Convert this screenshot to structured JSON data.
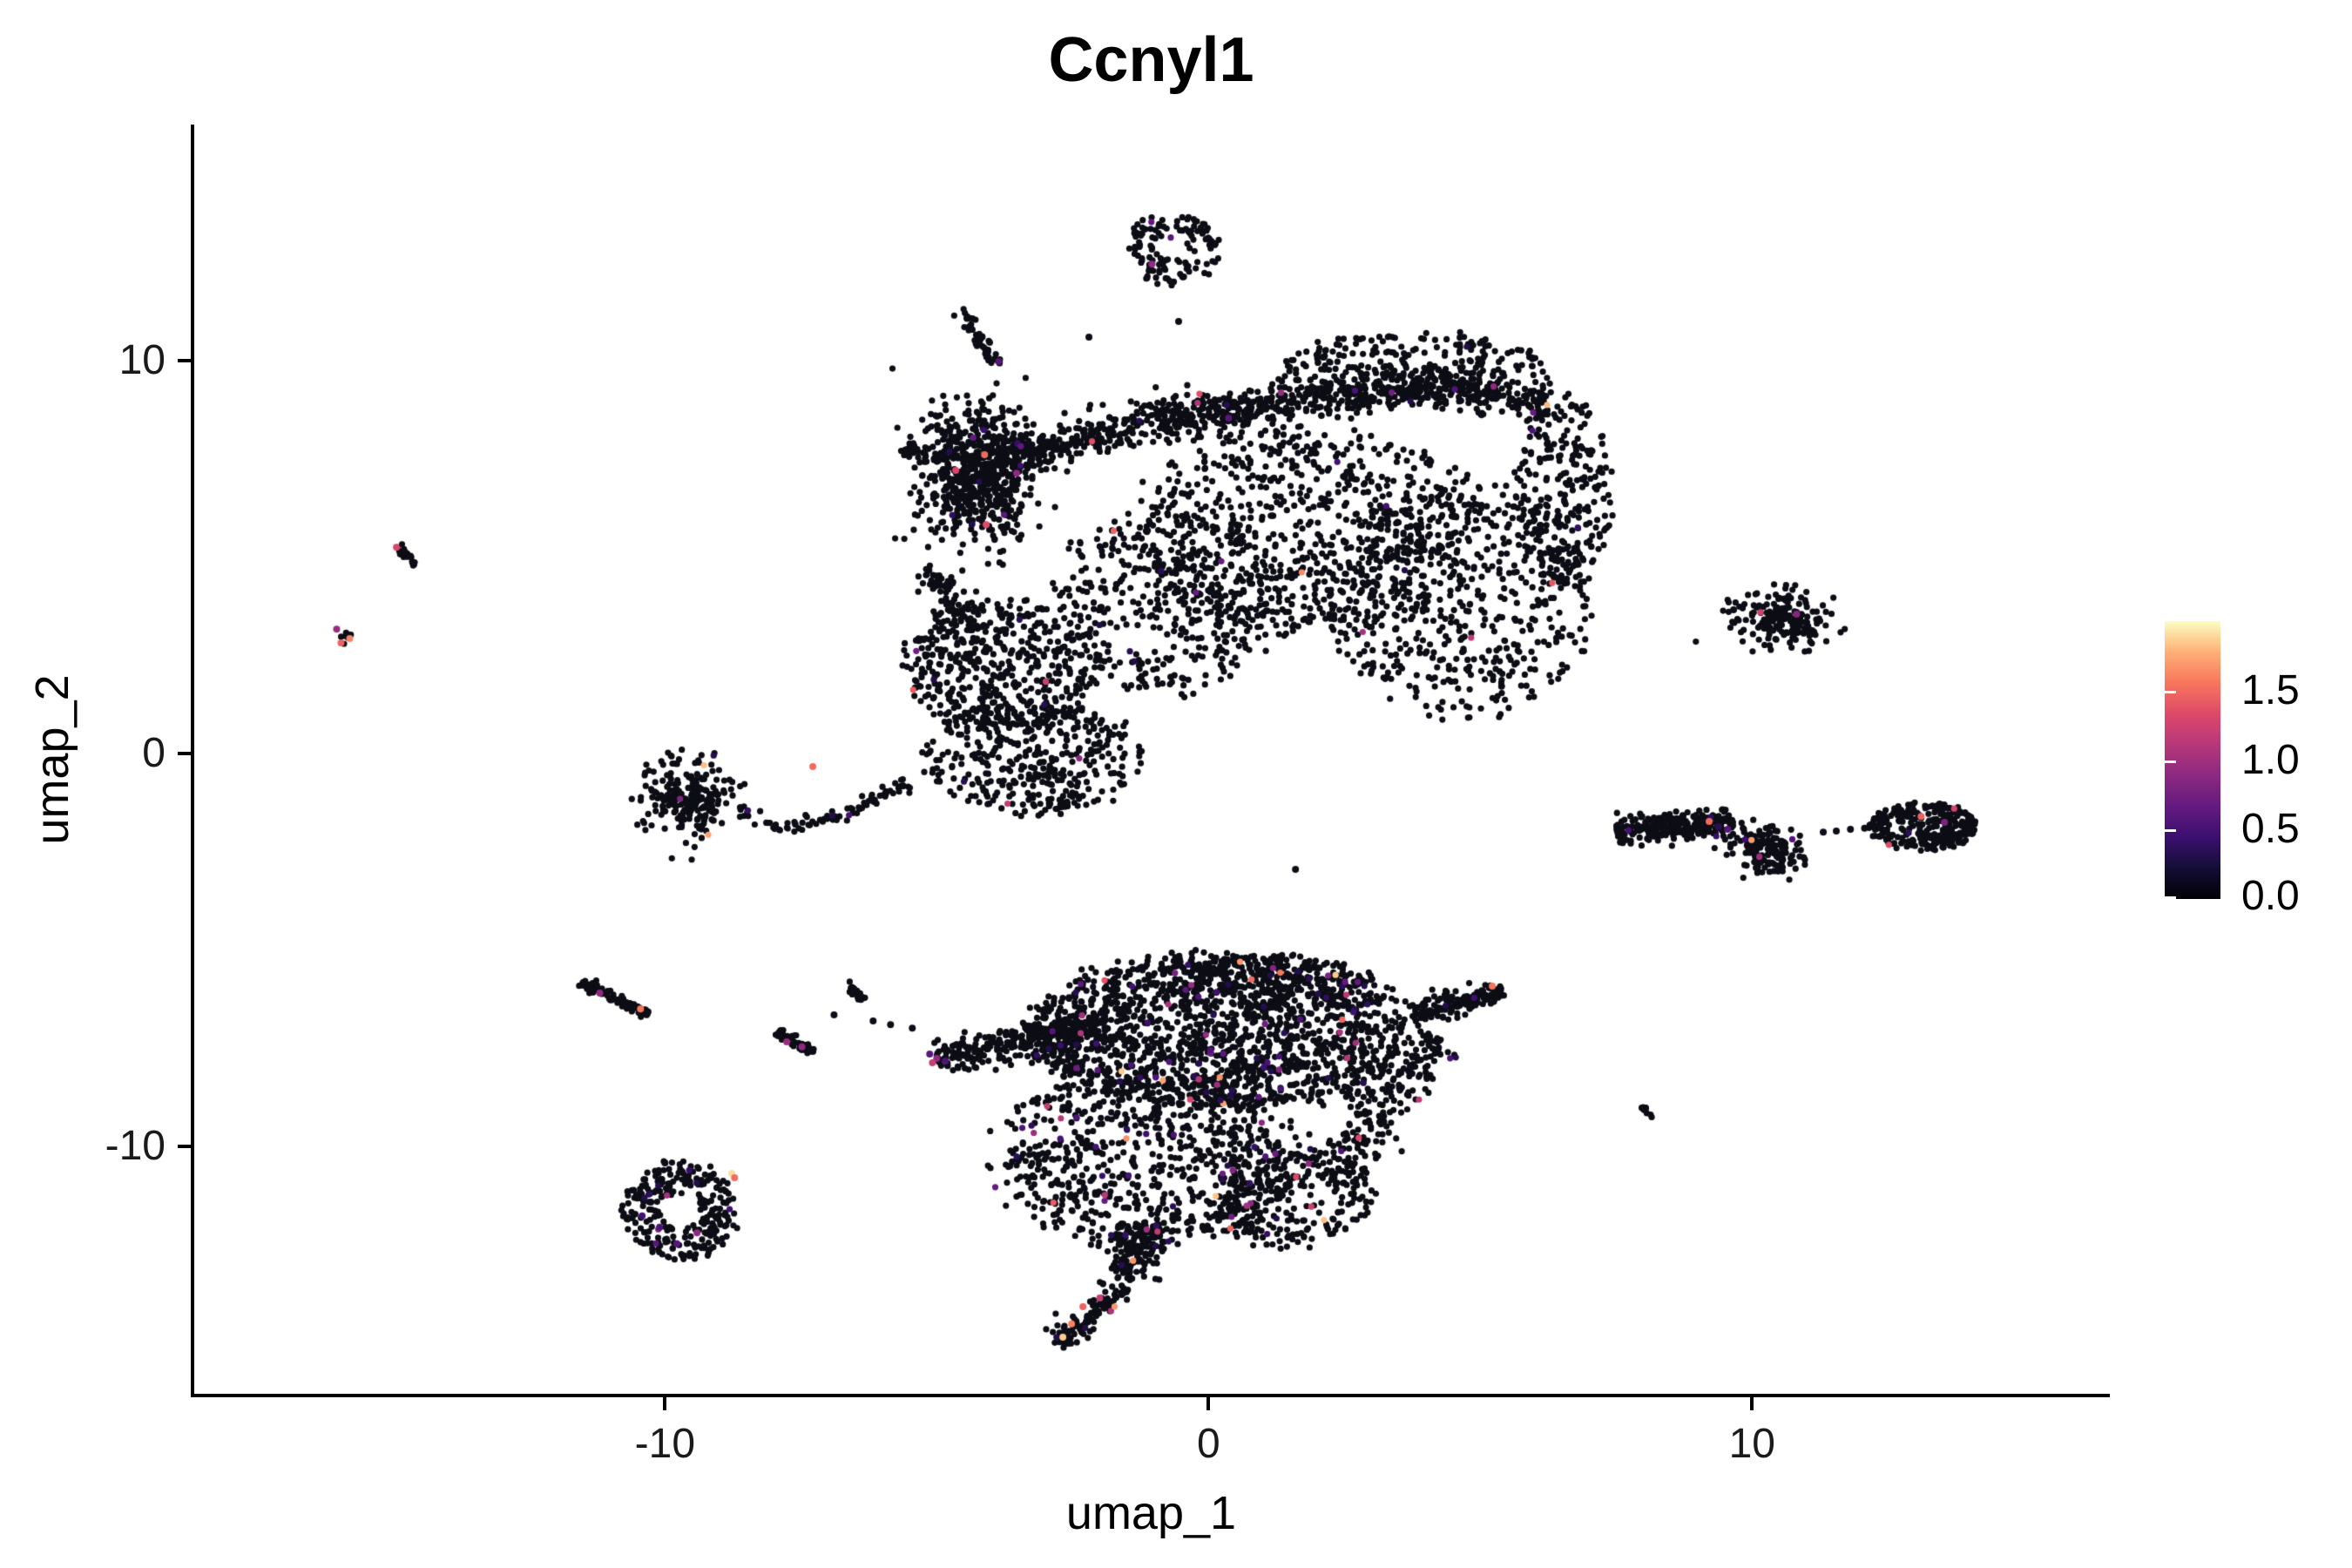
{
  "title": "Ccnyl1",
  "axes": {
    "x_label": "umap_1",
    "y_label": "umap_2",
    "x_ticks": [
      {
        "label": "-10",
        "value": -10
      },
      {
        "label": "0",
        "value": 0
      },
      {
        "label": "10",
        "value": 10
      }
    ],
    "y_ticks": [
      {
        "label": "10",
        "value": 10
      },
      {
        "label": "0",
        "value": 0
      },
      {
        "label": "-10",
        "value": -10
      }
    ]
  },
  "legend": {
    "ticks": [
      {
        "label": "1.5",
        "value": 1.5
      },
      {
        "label": "1.0",
        "value": 1.0
      },
      {
        "label": "0.5",
        "value": 0.5
      },
      {
        "label": "0.0",
        "value": 0.0
      }
    ],
    "scale_min": 0.0,
    "scale_max": 2.0,
    "colormap": "magma",
    "gradient_stops": [
      "#000004",
      "#140e36",
      "#3b0f70",
      "#641a80",
      "#8c2981",
      "#b73779",
      "#de4968",
      "#f8765c",
      "#feb078",
      "#fcfdbf"
    ]
  },
  "chart_data": {
    "type": "scatter",
    "title": "Ccnyl1",
    "xlabel": "umap_1",
    "ylabel": "umap_2",
    "x_range": [
      -18.66,
      16.55
    ],
    "y_range": [
      -16.3,
      15.97
    ],
    "grid": false,
    "legend_position": "right",
    "point_color_zero": "#0d0d15",
    "value_range": [
      0.0,
      2.0
    ],
    "layout_hints": {
      "point_px_radius": 3.6,
      "single_px_radius": 4.0,
      "seed": 1337
    },
    "clusters": [
      {
        "name": "top-blob",
        "kind": "blob",
        "cx": -0.67,
        "cy": 12.86,
        "rx": 0.88,
        "ry": 0.95,
        "n": 130,
        "u": 1,
        "hollow": 0.3,
        "cf": 0.01
      },
      {
        "name": "streak-ne",
        "kind": "seg",
        "x1": -4.57,
        "y1": 11.31,
        "x2": -3.86,
        "y2": 9.87,
        "w": 0.14,
        "n": 55,
        "cf": 0.01
      },
      {
        "name": "knot",
        "kind": "blob",
        "cx": -4.28,
        "cy": 7.1,
        "rx": 1.0,
        "ry": 1.7,
        "n": 650,
        "cf": 0.012
      },
      {
        "name": "knot-arm",
        "kind": "seg",
        "x1": -5.64,
        "y1": 7.76,
        "x2": -4.84,
        "y2": 7.43,
        "w": 0.18,
        "n": 40,
        "cf": 0
      },
      {
        "name": "ridge",
        "kind": "path",
        "pts": [
          [
            -3.8,
            7.54
          ],
          [
            -1.55,
            8.31
          ],
          [
            1.01,
            8.87
          ],
          [
            3.73,
            9.31
          ],
          [
            6.3,
            8.98
          ]
        ],
        "w": 0.55,
        "n": 950,
        "cf": 0.008
      },
      {
        "name": "top-lobe",
        "kind": "blob",
        "cx": 3.73,
        "cy": 9.9,
        "rx": 2.4,
        "ry": 0.85,
        "n": 240,
        "u": 1,
        "cf": 0.008
      },
      {
        "name": "upper-body-a",
        "kind": "blob",
        "cx": 1.81,
        "cy": 5.65,
        "rx": 3.3,
        "ry": 2.6,
        "n": 780,
        "u": 1,
        "cf": 0.01
      },
      {
        "name": "upper-body-b",
        "kind": "blob",
        "cx": 4.7,
        "cy": 3.88,
        "rx": 2.4,
        "ry": 3.0,
        "n": 520,
        "u": 1,
        "cf": 0.01
      },
      {
        "name": "upper-body-c",
        "kind": "blob",
        "cx": -0.75,
        "cy": 3.88,
        "rx": 2.1,
        "ry": 2.4,
        "n": 380,
        "u": 1,
        "cf": 0.01
      },
      {
        "name": "upper-body-right-edge",
        "kind": "blob",
        "cx": 6.54,
        "cy": 6.7,
        "rx": 0.9,
        "ry": 2.4,
        "n": 250,
        "u": 1,
        "cf": 0.008
      },
      {
        "name": "mid-left-a",
        "kind": "blob",
        "cx": -3.8,
        "cy": 2.22,
        "rx": 1.85,
        "ry": 1.65,
        "n": 500,
        "u": 1,
        "cf": 0.012
      },
      {
        "name": "mid-left-b",
        "kind": "blob",
        "cx": -3.24,
        "cy": -0.11,
        "rx": 2.0,
        "ry": 1.45,
        "n": 370,
        "u": 1,
        "cf": 0.012
      },
      {
        "name": "mid-left-arm",
        "kind": "seg",
        "x1": -5.24,
        "y1": 4.77,
        "x2": -4.44,
        "y2": 3.44,
        "w": 0.35,
        "n": 60,
        "cf": 0
      },
      {
        "name": "west-chain",
        "kind": "path",
        "pts": [
          [
            -5.56,
            -0.73
          ],
          [
            -6.76,
            -1.55
          ],
          [
            -7.8,
            -1.88
          ],
          [
            -8.69,
            -1.44
          ]
        ],
        "w": 0.18,
        "n": 85,
        "cf": 0.01
      },
      {
        "name": "west-blob",
        "kind": "blob",
        "cx": -9.6,
        "cy": -1.18,
        "rx": 0.85,
        "ry": 0.95,
        "n": 230,
        "cf": 0.01
      },
      {
        "name": "far-west-streak",
        "kind": "seg",
        "x1": -14.97,
        "y1": 5.28,
        "x2": -14.57,
        "y2": 4.83,
        "w": 0.1,
        "n": 28,
        "cf": 0
      },
      {
        "name": "far-west-clump",
        "kind": "blob",
        "cx": -15.88,
        "cy": 2.97,
        "rx": 0.16,
        "ry": 0.14,
        "n": 7,
        "cf": 0
      },
      {
        "name": "east-top-blob",
        "kind": "blob",
        "cx": 10.47,
        "cy": 3.39,
        "rx": 0.9,
        "ry": 0.72,
        "n": 190,
        "cf": 0.005
      },
      {
        "name": "east-band",
        "kind": "path",
        "pts": [
          [
            7.5,
            -2.0
          ],
          [
            8.6,
            -1.82
          ],
          [
            9.66,
            -1.77
          ]
        ],
        "w": 0.35,
        "n": 260,
        "cf": 0.02
      },
      {
        "name": "east-lobe",
        "kind": "blob",
        "cx": 10.3,
        "cy": -2.44,
        "rx": 0.75,
        "ry": 0.65,
        "n": 160,
        "cf": 0.02
      },
      {
        "name": "far-east",
        "kind": "blob",
        "cx": 13.16,
        "cy": -1.84,
        "rx": 1.0,
        "ry": 0.62,
        "n": 290,
        "u": 1,
        "cf": 0.01
      },
      {
        "name": "sw-streak-a",
        "kind": "seg",
        "x1": -11.54,
        "y1": -5.83,
        "x2": -10.32,
        "y2": -6.65,
        "w": 0.12,
        "n": 85,
        "cf": 0
      },
      {
        "name": "sw-streak-b",
        "kind": "seg",
        "x1": -7.92,
        "y1": -7.1,
        "x2": -7.28,
        "y2": -7.61,
        "w": 0.12,
        "n": 50,
        "cf": 0
      },
      {
        "name": "sw-streak-c",
        "kind": "seg",
        "x1": -6.65,
        "y1": -5.83,
        "x2": -6.36,
        "y2": -6.32,
        "w": 0.1,
        "n": 22,
        "cf": 0
      },
      {
        "name": "whale-head",
        "kind": "blob",
        "cx": 0.21,
        "cy": -7.1,
        "rx": 3.6,
        "ry": 2.0,
        "n": 1600,
        "u": 1,
        "cf": 0.035
      },
      {
        "name": "whale-crest",
        "kind": "blob",
        "cx": 1.01,
        "cy": -5.8,
        "rx": 1.9,
        "ry": 0.7,
        "n": 240,
        "u": 1,
        "cf": 0.03
      },
      {
        "name": "whale-nose",
        "kind": "seg",
        "x1": 3.73,
        "y1": -6.65,
        "x2": 5.42,
        "y2": -6.03,
        "w": 0.5,
        "n": 160,
        "cf": 0.02,
        "taper": 1
      },
      {
        "name": "whale-wing",
        "kind": "path",
        "pts": [
          [
            -5.0,
            -7.8
          ],
          [
            -3.5,
            -7.35
          ],
          [
            -1.88,
            -6.81
          ]
        ],
        "w": 0.45,
        "n": 270,
        "cf": 0.05
      },
      {
        "name": "whale-body",
        "kind": "blob",
        "cx": -1.07,
        "cy": -10.31,
        "rx": 2.9,
        "ry": 2.2,
        "n": 760,
        "u": 1,
        "cf": 0.04
      },
      {
        "name": "whale-belly",
        "kind": "blob",
        "cx": 1.49,
        "cy": -11.3,
        "rx": 1.6,
        "ry": 1.3,
        "n": 240,
        "u": 1,
        "cf": 0.04
      },
      {
        "name": "whale-flank",
        "kind": "seg",
        "x1": 4.2,
        "y1": -7.2,
        "x2": 2.2,
        "y2": -11.0,
        "w": 0.6,
        "n": 220,
        "cf": 0.03
      },
      {
        "name": "whale-neck",
        "kind": "seg",
        "x1": -1.23,
        "y1": -12.0,
        "x2": -1.47,
        "y2": -13.41,
        "w": 0.5,
        "n": 130,
        "cf": 0.04
      },
      {
        "name": "whale-tail",
        "kind": "seg",
        "x1": -1.55,
        "y1": -13.59,
        "x2": -2.8,
        "y2": -15.03,
        "w": 0.28,
        "n": 110,
        "cf": 0.05
      },
      {
        "name": "sw-crescent",
        "kind": "blob",
        "cx": -9.7,
        "cy": -11.64,
        "rx": 1.05,
        "ry": 1.25,
        "n": 270,
        "u": 1,
        "hollow": 0.35,
        "cf": 0.02
      },
      {
        "name": "se-streak",
        "kind": "seg",
        "x1": 7.96,
        "y1": -8.94,
        "x2": 8.17,
        "y2": -9.25,
        "w": 0.08,
        "n": 12,
        "cf": 0
      }
    ],
    "colored_points": [
      [
        -1.04,
        12.46,
        0.9
      ],
      [
        -3.86,
        9.98,
        0.6
      ],
      [
        -4.65,
        7.21,
        1.3
      ],
      [
        -4.12,
        7.61,
        1.5
      ],
      [
        -4.09,
        5.83,
        1.35
      ],
      [
        -3.53,
        7.14,
        0.9
      ],
      [
        -7.28,
        -0.33,
        1.5
      ],
      [
        -14.94,
        5.25,
        1.3
      ],
      [
        -16.04,
        3.17,
        0.95
      ],
      [
        -15.8,
        2.93,
        1.6
      ],
      [
        -15.96,
        2.82,
        1.45
      ],
      [
        10.82,
        3.55,
        0.85
      ],
      [
        9.21,
        -1.73,
        1.5
      ],
      [
        9.55,
        -1.93,
        0.6
      ],
      [
        9.38,
        -1.86,
        0.35
      ],
      [
        13.11,
        -1.6,
        1.45
      ],
      [
        13.54,
        -1.75,
        0.8
      ],
      [
        -11.2,
        -6.1,
        0.9
      ],
      [
        -10.45,
        -6.5,
        1.55
      ],
      [
        -7.76,
        -7.34,
        0.95
      ],
      [
        -7.48,
        -7.47,
        0.9
      ],
      [
        -5.13,
        -7.65,
        0.6
      ],
      [
        -5.0,
        -7.76,
        0.9
      ],
      [
        -4.84,
        -7.83,
        0.55
      ],
      [
        -5.08,
        -7.87,
        1.2
      ],
      [
        5.22,
        -5.92,
        1.55
      ],
      [
        -2.52,
        -14.52,
        1.6
      ],
      [
        -2.31,
        -14.08,
        1.45
      ],
      [
        -2.68,
        -14.86,
        1.85
      ],
      [
        -2.0,
        -13.86,
        1.2
      ],
      [
        -8.77,
        -10.69,
        1.9
      ],
      [
        -8.72,
        -10.8,
        1.5
      ],
      [
        -10.1,
        -12.06,
        0.55
      ],
      [
        -9.78,
        -12.48,
        0.6
      ],
      [
        -9.41,
        -12.2,
        0.9
      ],
      [
        -10.42,
        -11.77,
        0.5
      ],
      [
        0.37,
        8.54,
        0.6
      ]
    ],
    "single_black_points": [
      [
        1.6,
        -2.95
      ],
      [
        9.66,
        3.66
      ],
      [
        11.31,
        -2.0
      ],
      [
        11.55,
        -1.97
      ],
      [
        11.81,
        -1.93
      ],
      [
        12.07,
        -1.9
      ],
      [
        12.34,
        -1.86
      ],
      [
        -6.89,
        -6.65
      ],
      [
        -6.17,
        -6.81
      ],
      [
        -5.85,
        -6.9
      ],
      [
        -5.45,
        -6.99
      ],
      [
        -10.0,
        -10.42
      ],
      [
        -9.92,
        -11.02
      ],
      [
        -10.26,
        -11.42
      ],
      [
        -0.55,
        11.0
      ],
      [
        -2.2,
        10.6
      ]
    ]
  }
}
